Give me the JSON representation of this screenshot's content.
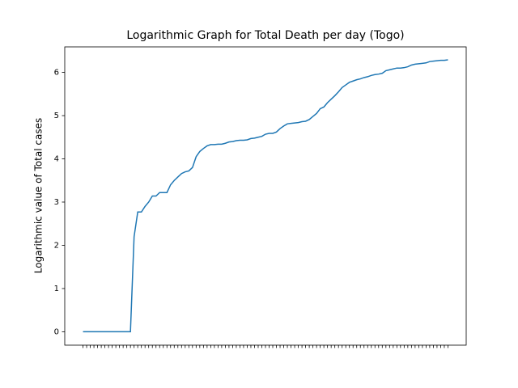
{
  "chart_data": {
    "type": "line",
    "title": "Logarithmic Graph for Total Death per day (Togo)",
    "y_label": "Logarithmic value of Total cases",
    "categories": [
      null,
      null,
      null,
      null,
      null,
      null,
      null,
      null,
      null,
      null,
      null,
      null,
      null,
      null,
      null,
      null,
      null,
      null,
      null,
      null,
      null,
      null,
      null,
      null,
      null,
      null,
      null,
      null,
      null,
      null,
      null,
      null,
      null,
      null,
      null,
      null,
      null,
      null,
      null,
      null,
      null,
      null,
      null,
      null,
      null,
      null,
      null,
      null,
      null,
      null,
      null,
      null,
      null,
      null,
      null,
      null,
      null,
      null,
      null,
      null,
      null,
      null,
      null,
      null,
      null,
      null,
      null,
      null,
      null,
      null,
      null,
      null,
      null,
      null,
      null,
      null,
      null,
      null,
      null,
      null,
      null,
      null,
      null,
      null,
      null,
      null,
      null,
      null,
      null,
      null,
      null,
      null,
      null,
      null,
      null,
      null,
      null,
      null,
      null,
      null,
      null
    ],
    "values": [
      0,
      0,
      0,
      0,
      0,
      0,
      0,
      0,
      0,
      0,
      0,
      0,
      0,
      0,
      2.2,
      2.77,
      2.77,
      2.9,
      3.0,
      3.14,
      3.14,
      3.22,
      3.22,
      3.22,
      3.4,
      3.5,
      3.58,
      3.66,
      3.7,
      3.72,
      3.8,
      4.05,
      4.17,
      4.24,
      4.3,
      4.33,
      4.33,
      4.34,
      4.34,
      4.36,
      4.39,
      4.4,
      4.42,
      4.43,
      4.43,
      4.44,
      4.47,
      4.48,
      4.5,
      4.52,
      4.57,
      4.59,
      4.59,
      4.62,
      4.7,
      4.76,
      4.81,
      4.82,
      4.83,
      4.84,
      4.86,
      4.87,
      4.91,
      4.98,
      5.05,
      5.16,
      5.2,
      5.3,
      5.38,
      5.46,
      5.55,
      5.65,
      5.71,
      5.77,
      5.8,
      5.83,
      5.85,
      5.88,
      5.9,
      5.93,
      5.95,
      5.96,
      5.98,
      6.04,
      6.06,
      6.08,
      6.1,
      6.1,
      6.11,
      6.13,
      6.17,
      6.19,
      6.2,
      6.21,
      6.22,
      6.25,
      6.26,
      6.27,
      6.28,
      6.28,
      6.29
    ],
    "color": "#1f77b4",
    "ylim": [
      -0.31,
      6.59
    ],
    "yticks": [
      0,
      1,
      2,
      3,
      4,
      5,
      6
    ],
    "grid": false
  }
}
